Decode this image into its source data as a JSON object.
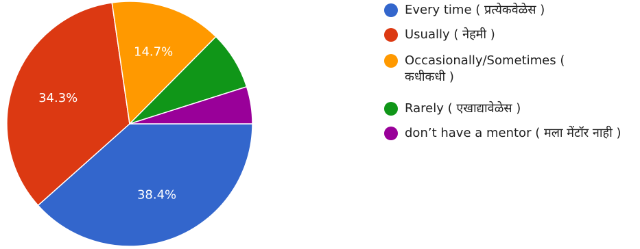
{
  "chart_data": {
    "type": "pie",
    "slices": [
      {
        "label": "Every time ( प्रत्येकवेळेस )",
        "value": 38.4,
        "display": "38.4%",
        "color": "#3366cc"
      },
      {
        "label": "Usually ( नेहमी )",
        "value": 34.3,
        "display": "34.3%",
        "color": "#dc3912"
      },
      {
        "label": "Occasionally/Sometimes ( कधीकधी )",
        "value": 14.7,
        "display": "14.7%",
        "color": "#ff9900"
      },
      {
        "label": "Rarely ( एखाद्यावेळेस )",
        "value": 7.7,
        "display": "",
        "color": "#109618"
      },
      {
        "label": "don’t have a mentor ( मला मेंटॉर नाही )",
        "value": 4.9,
        "display": "",
        "color": "#990099"
      }
    ],
    "legend_position": "right"
  }
}
